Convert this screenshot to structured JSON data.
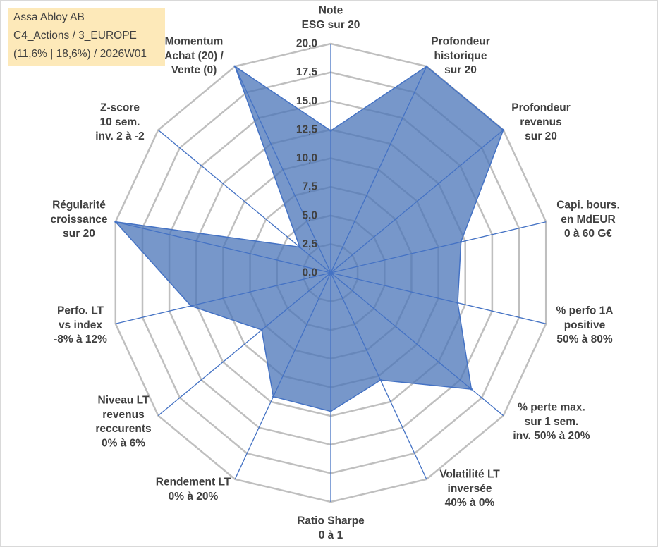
{
  "info_box": {
    "company": "Assa Abloy AB",
    "category": "C4_Actions / 3_EUROPE",
    "stats": "(11,6% | 18,6%) / 2026W01"
  },
  "chart_data": {
    "type": "radar",
    "categories": [
      "Note\nESG sur 20",
      "Profondeur\nhistorique\nsur 20",
      "Profondeur\nrevenus\nsur 20",
      "Capi. bours.\nen MdEUR\n0 à 60 G€",
      "% perfo 1A\npositive\n50% à 80%",
      "% perte max.\nsur 1 sem.\ninv. 50% à 20%",
      "Volatilité LT\ninversée\n40% à 0%",
      "Ratio Sharpe\n0 à 1",
      "Rendement LT\n0% à 20%",
      "Niveau LT\nrevenus\nreccurents\n0% à 6%",
      "Perfo. LT\nvs index\n-8% à 12%",
      "Régularité\ncroissance\nsur 20",
      "Z-score\n10 sem.\ninv. 2 à -2",
      "Momentum\nAchat (20) /\nVente (0)"
    ],
    "series": [
      {
        "values": [
          12.4,
          20,
          20,
          12.1,
          11.8,
          16.3,
          10.4,
          12.1,
          12.0,
          8.0,
          13.0,
          20,
          3.6,
          20
        ]
      }
    ],
    "rlim": [
      0,
      20
    ],
    "tick_values": [
      0,
      2.5,
      5,
      7.5,
      10,
      12.5,
      15,
      17.5,
      20
    ],
    "tick_labels": [
      "0,0",
      "2,5",
      "5,0",
      "7,5",
      "10,0",
      "12,5",
      "15,0",
      "17,5",
      "20,0"
    ],
    "grid": true,
    "filled": true,
    "series_color": "#4472c4",
    "fill_color": "#4a74b8",
    "grid_color": "#bfbfbf",
    "text_color": "#404040",
    "info_box_color": "#fde9b9"
  }
}
